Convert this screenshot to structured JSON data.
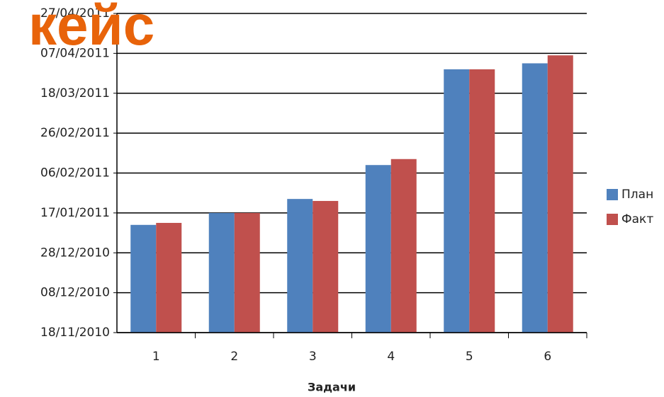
{
  "chart_data": {
    "type": "bar",
    "title": "кейс",
    "xlabel": "Задачи",
    "categories": [
      "1",
      "2",
      "3",
      "4",
      "5",
      "6"
    ],
    "series": [
      {
        "name": "План",
        "color": "#4f81bd",
        "values": [
          "2011-01-11",
          "2011-01-17",
          "2011-01-24",
          "2011-02-10",
          "2011-03-30",
          "2011-04-02"
        ]
      },
      {
        "name": "Факт",
        "color": "#c0504d",
        "values": [
          "2011-01-12",
          "2011-01-17",
          "2011-01-23",
          "2011-02-13",
          "2011-03-30",
          "2011-04-06"
        ]
      }
    ],
    "ylim": [
      "2010-11-18",
      "2011-04-27"
    ],
    "yticks": [
      {
        "value": "2010-11-18",
        "label": "18/11/2010"
      },
      {
        "value": "2010-12-08",
        "label": "08/12/2010"
      },
      {
        "value": "2010-12-28",
        "label": "28/12/2010"
      },
      {
        "value": "2011-01-17",
        "label": "17/01/2011"
      },
      {
        "value": "2011-02-06",
        "label": "06/02/2011"
      },
      {
        "value": "2011-02-26",
        "label": "26/02/2011"
      },
      {
        "value": "2011-03-18",
        "label": "18/03/2011"
      },
      {
        "value": "2011-04-07",
        "label": "07/04/2011"
      },
      {
        "value": "2011-04-27",
        "label": "27/04/2011"
      }
    ],
    "grid": true,
    "legend": "right"
  }
}
